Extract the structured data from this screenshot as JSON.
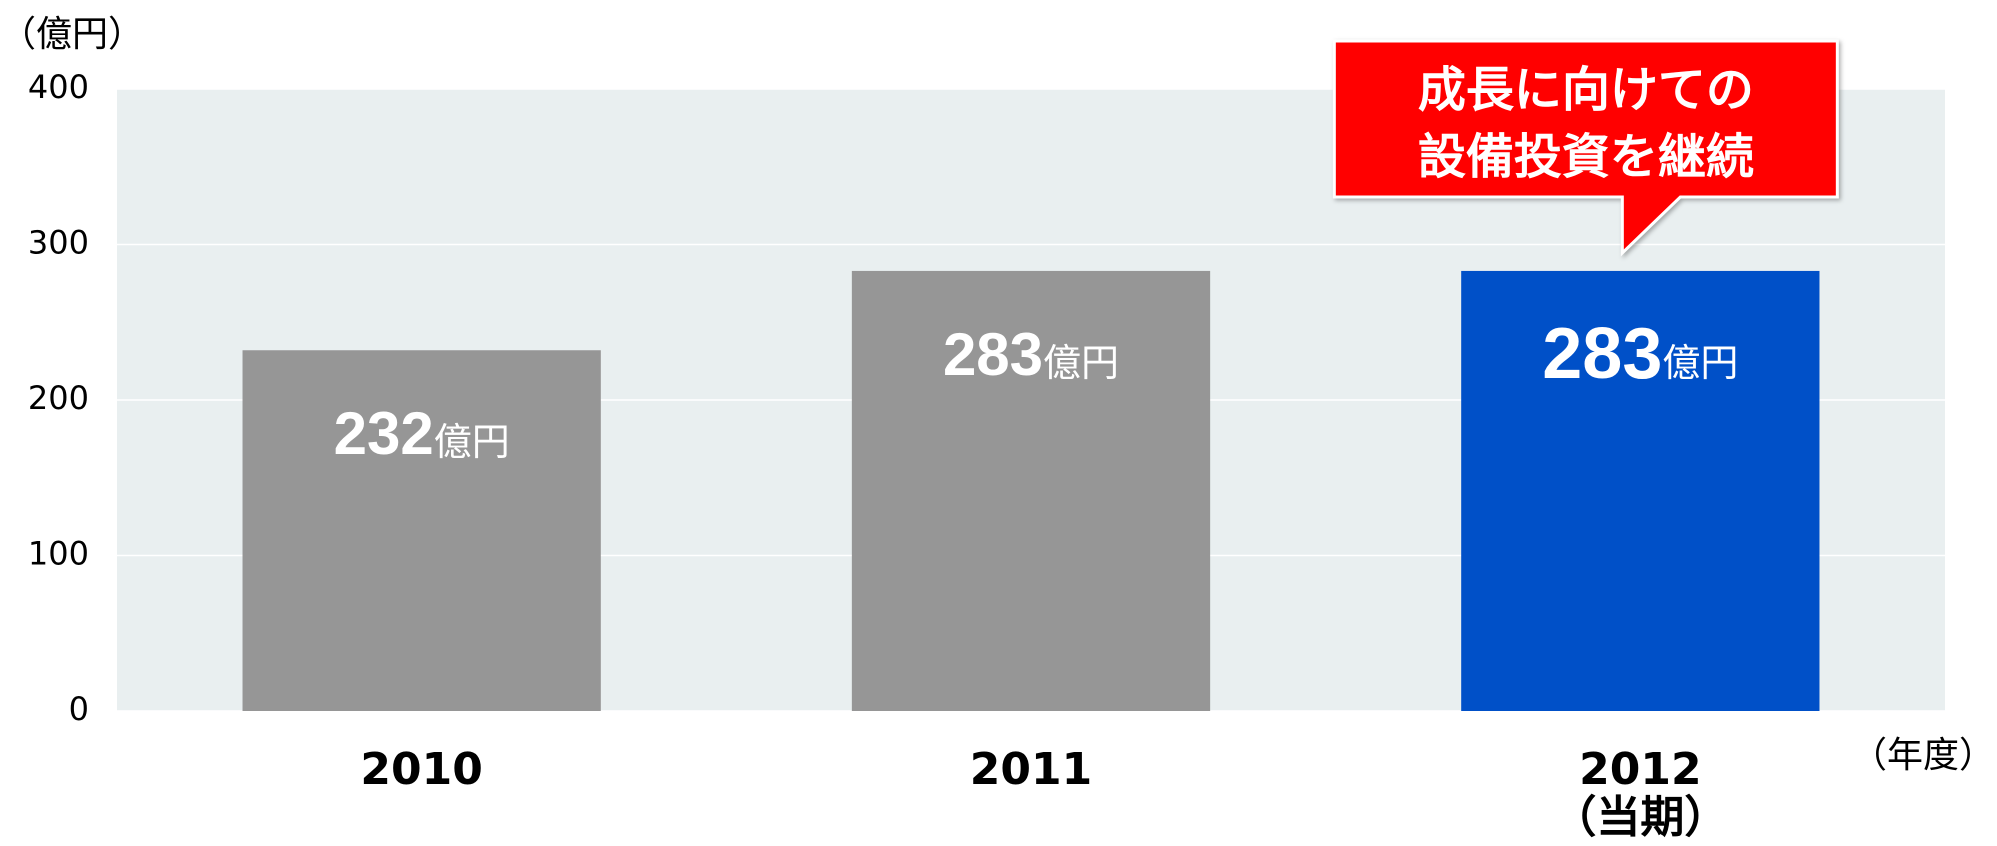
{
  "chart_data": {
    "type": "bar",
    "y_axis_label": "（億円）",
    "x_axis_label": "（年度）",
    "categories": [
      "2010",
      "2011",
      "2012"
    ],
    "category_sublabels": [
      null,
      null,
      "（当期）"
    ],
    "values": [
      232,
      283,
      283
    ],
    "value_unit": "億円",
    "colors": [
      "#969696",
      "#969696",
      "#0050c8"
    ],
    "ylim": [
      0,
      400
    ],
    "yticks": [
      0,
      100,
      200,
      300,
      400
    ],
    "grid": true,
    "annotation": {
      "lines": [
        "成長に向けての",
        "設備投資を継続"
      ],
      "color": "#ff0000",
      "category_index": 2
    }
  }
}
